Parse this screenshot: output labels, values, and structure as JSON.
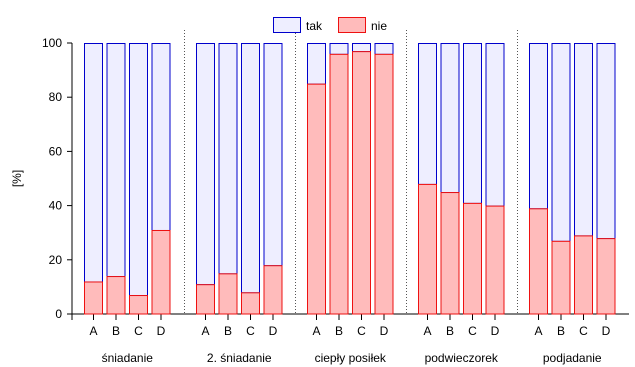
{
  "chart_data": {
    "type": "bar",
    "stacked": true,
    "ylabel": "[%]",
    "ylim": [
      0,
      100
    ],
    "yticks": [
      0,
      20,
      40,
      60,
      80,
      100
    ],
    "legend": {
      "placement": "top-center",
      "items": [
        {
          "label": "tak",
          "fill": "#eeeeff",
          "stroke": "#0000cc"
        },
        {
          "label": "nie",
          "fill": "#ffbbbb",
          "stroke": "#ee1111"
        }
      ]
    },
    "groups": [
      {
        "name": "śniadanie",
        "categories": [
          "A",
          "B",
          "C",
          "D"
        ],
        "nie": [
          12,
          14,
          7,
          31
        ],
        "tak": [
          88,
          86,
          93,
          69
        ]
      },
      {
        "name": "2. śniadanie",
        "categories": [
          "A",
          "B",
          "C",
          "D"
        ],
        "nie": [
          11,
          15,
          8,
          18
        ],
        "tak": [
          89,
          85,
          92,
          82
        ]
      },
      {
        "name": "ciepły posiłek",
        "categories": [
          "A",
          "B",
          "C",
          "D"
        ],
        "nie": [
          85,
          96,
          97,
          96
        ],
        "tak": [
          15,
          4,
          3,
          4
        ]
      },
      {
        "name": "podwieczorek",
        "categories": [
          "A",
          "B",
          "C",
          "D"
        ],
        "nie": [
          48,
          45,
          41,
          40
        ],
        "tak": [
          52,
          55,
          59,
          60
        ]
      },
      {
        "name": "podjadanie",
        "categories": [
          "A",
          "B",
          "C",
          "D"
        ],
        "nie": [
          39,
          27,
          29,
          28
        ],
        "tak": [
          61,
          73,
          71,
          72
        ]
      }
    ],
    "separators": "dotted",
    "grid": false
  }
}
